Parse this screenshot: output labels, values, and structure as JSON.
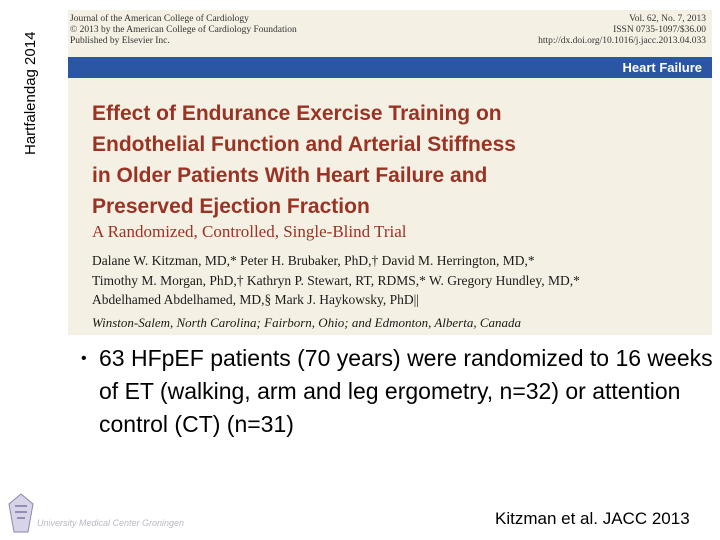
{
  "sidebar": "Hartfalendag 2014",
  "article": {
    "journal_left": [
      "Journal of the American College of Cardiology",
      "© 2013 by the American College of Cardiology Foundation",
      "Published by Elsevier Inc."
    ],
    "journal_right": [
      "Vol. 62, No. 7, 2013",
      "ISSN 0735-1097/$36.00",
      "http://dx.doi.org/10.1016/j.jacc.2013.04.033"
    ],
    "section": "Heart Failure",
    "title_lines": [
      "Effect of Endurance Exercise Training on",
      "Endothelial Function and Arterial Stiffness",
      "in Older Patients With Heart Failure and",
      "Preserved Ejection Fraction"
    ],
    "subtitle": "A Randomized, Controlled, Single-Blind Trial",
    "author_lines": [
      "Dalane W. Kitzman, MD,* Peter H. Brubaker, PhD,† David M. Herrington, MD,*",
      "Timothy M. Morgan, PhD,† Kathryn P. Stewart, RT, RDMS,* W. Gregory Hundley, MD,*",
      "Abdelhamed Abdelhamed, MD,§ Mark J. Haykowsky, PhD||"
    ],
    "affiliation": "Winston-Salem, North Carolina; Fairborn, Ohio; and Edmonton, Alberta, Canada"
  },
  "bullets": [
    "63 HFpEF patients (70 years) were randomized to 16 weeks of ET (walking, arm and leg ergometry, n=32) or attention control (CT) (n=31)"
  ],
  "footer": {
    "logo_text": "University Medical Center Groningen",
    "citation": "Kitzman et al. JACC 2013"
  }
}
